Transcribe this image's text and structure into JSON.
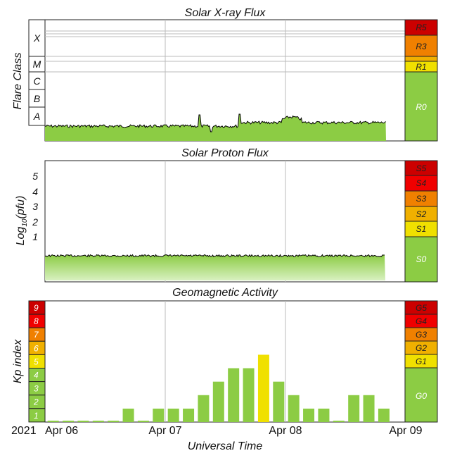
{
  "chart_data": [
    {
      "type": "line",
      "title": "Solar X-ray Flux",
      "ylabel": "Flare Class",
      "flare_classes": [
        "X",
        "M",
        "C",
        "B",
        "A"
      ],
      "x_dates": [
        "Apr 06",
        "Apr 07",
        "Apr 08",
        "Apr 09"
      ],
      "scale": [
        {
          "label": "R5",
          "color": "#cc0000"
        },
        {
          "label": "R3",
          "color": "#f08000"
        },
        {
          "label": "R1",
          "color": "#f0e000"
        },
        {
          "label": "R0",
          "color": "#8ccc44"
        }
      ]
    },
    {
      "type": "line",
      "title": "Solar Proton Flux",
      "ylabel": "Log10(pfu)",
      "ytick_labels": [
        "5",
        "4",
        "3",
        "2",
        "1"
      ],
      "scale": [
        {
          "label": "S5",
          "color": "#cc0000"
        },
        {
          "label": "S4",
          "color": "#f00000"
        },
        {
          "label": "S3",
          "color": "#f08000"
        },
        {
          "label": "S2",
          "color": "#f0b000"
        },
        {
          "label": "S1",
          "color": "#f0e000"
        },
        {
          "label": "S0",
          "color": "#8ccc44"
        }
      ]
    },
    {
      "type": "bar",
      "title": "Geomagnetic Activity",
      "ylabel": "Kp index",
      "xlabel": "Universal Time",
      "year_label": "2021",
      "x_ticks": [
        "Apr 06",
        "Apr 07",
        "Apr 08",
        "Apr 09"
      ],
      "kp_levels": [
        {
          "label": "9",
          "color": "#cc0000"
        },
        {
          "label": "8",
          "color": "#f00000"
        },
        {
          "label": "7",
          "color": "#f08000"
        },
        {
          "label": "6",
          "color": "#f0b000"
        },
        {
          "label": "5",
          "color": "#f0e000"
        },
        {
          "label": "4",
          "color": "#8ccc44"
        },
        {
          "label": "3",
          "color": "#8ccc44"
        },
        {
          "label": "2",
          "color": "#8ccc44"
        },
        {
          "label": "1",
          "color": "#8ccc44"
        }
      ],
      "values": [
        0.1,
        0.1,
        0.1,
        0.1,
        0.1,
        1,
        0.1,
        1,
        1,
        1,
        2,
        3,
        4,
        4,
        5,
        3,
        2,
        1,
        1,
        0.1,
        2,
        2,
        1
      ],
      "ylim": [
        0,
        9
      ],
      "scale": [
        {
          "label": "G5",
          "color": "#cc0000"
        },
        {
          "label": "G4",
          "color": "#f00000"
        },
        {
          "label": "G3",
          "color": "#f08000"
        },
        {
          "label": "G2",
          "color": "#f0b000"
        },
        {
          "label": "G1",
          "color": "#f0e000"
        },
        {
          "label": "G0",
          "color": "#8ccc44"
        }
      ]
    }
  ],
  "colors": {
    "quiet_green": "#8ccc44",
    "elevated_yellow": "#f0e000",
    "kp_bar_green": "#8ccc44",
    "kp_bar_yellow": "#f0e000",
    "trace": "#000000"
  }
}
